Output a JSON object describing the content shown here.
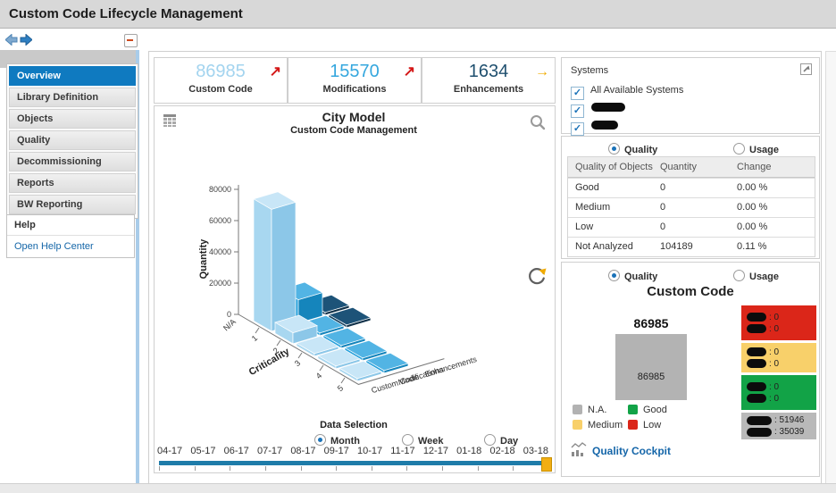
{
  "app": {
    "title": "Custom Code Lifecycle Management"
  },
  "icons": {
    "check": "✓",
    "trend_up": "↗",
    "trend_flat": "→",
    "names": [
      "nav-back",
      "nav-forward",
      "collapse-minus",
      "table-view-icon",
      "magnifier-icon",
      "refresh-icon",
      "expand-icon",
      "mini-chart-icon"
    ]
  },
  "sidebar": {
    "items": [
      {
        "label": "Overview",
        "selected": true
      },
      {
        "label": "Library Definition",
        "selected": false
      },
      {
        "label": "Objects",
        "selected": false
      },
      {
        "label": "Quality",
        "selected": false
      },
      {
        "label": "Decommissioning",
        "selected": false
      },
      {
        "label": "Reports",
        "selected": false
      },
      {
        "label": "BW Reporting",
        "selected": false
      }
    ],
    "help_header": "Help",
    "help_link": "Open Help Center"
  },
  "kpis": [
    {
      "value": "86985",
      "label": "Custom Code",
      "value_color": "#a3d4ef",
      "trend": "up",
      "trend_color": "#d41717"
    },
    {
      "value": "15570",
      "label": "Modifications",
      "value_color": "#35a7de",
      "trend": "up",
      "trend_color": "#d41717"
    },
    {
      "value": "1634",
      "label": "Enhancements",
      "value_color": "#20506f",
      "trend": "flat",
      "trend_color": "#f0ab00"
    }
  ],
  "chart_data": {
    "type": "bar",
    "variant": "3d-city-model",
    "title": "City Model",
    "subtitle": "Custom Code Management",
    "xlabel": "Criticality",
    "ylabel": "Quantity",
    "ylim": [
      0,
      80000
    ],
    "yticks": [
      0,
      20000,
      40000,
      60000,
      80000
    ],
    "categories": [
      "N/A",
      "1",
      "2",
      "3",
      "4",
      "5"
    ],
    "series": [
      {
        "name": "Custom Code",
        "colors": {
          "top": "#c8e6f7",
          "left": "#a8d7f0",
          "right": "#8cc7e8"
        },
        "values": [
          null,
          78000,
          7000,
          400,
          300,
          250
        ]
      },
      {
        "name": "Modifications",
        "colors": {
          "top": "#52b4e4",
          "left": "#2aa2dc",
          "right": "#1585bc"
        },
        "values": [
          null,
          15000,
          500,
          400,
          300,
          250
        ]
      },
      {
        "name": "Enhancements",
        "colors": {
          "top": "#1d5378",
          "left": "#153f5d",
          "right": "#0e3048"
        },
        "values": [
          null,
          1500,
          250,
          null,
          null,
          null
        ]
      }
    ],
    "legend_position": "axis-labels-on-depth-axis",
    "grid": false
  },
  "data_selection": {
    "label": "Data Selection",
    "options": [
      {
        "label": "Month",
        "selected": true
      },
      {
        "label": "Week",
        "selected": false
      },
      {
        "label": "Day",
        "selected": false
      }
    ]
  },
  "timeline": {
    "labels": [
      "04-17",
      "05-17",
      "06-17",
      "07-17",
      "08-17",
      "09-17",
      "10-17",
      "11-17",
      "12-17",
      "01-18",
      "02-18",
      "03-18"
    ]
  },
  "systems": {
    "title": "Systems",
    "items": [
      {
        "label": "All Available Systems",
        "checked": true,
        "redacted": false
      },
      {
        "label": "",
        "checked": true,
        "redacted": true
      },
      {
        "label": "",
        "checked": true,
        "redacted": true
      }
    ]
  },
  "quality_panel": {
    "radios": [
      {
        "label": "Quality",
        "selected": true
      },
      {
        "label": "Usage",
        "selected": false
      }
    ],
    "table": {
      "headers": [
        "Quality of Objects",
        "Quantity",
        "Change"
      ],
      "rows": [
        [
          "Good",
          "0",
          "0.00 %"
        ],
        [
          "Medium",
          "0",
          "0.00 %"
        ],
        [
          "Low",
          "0",
          "0.00 %"
        ],
        [
          "Not Analyzed",
          "104189",
          "0.11 %"
        ]
      ]
    }
  },
  "custom_code_panel": {
    "radios": [
      {
        "label": "Quality",
        "selected": true
      },
      {
        "label": "Usage",
        "selected": false
      }
    ],
    "title": "Custom Code",
    "total": "86985",
    "block_value": "86985",
    "value_separator": ": ",
    "stat_blocks": [
      {
        "color": "#db2619",
        "rows": [
          {
            "redacted": true,
            "value": "0"
          },
          {
            "redacted": true,
            "value": "0"
          }
        ]
      },
      {
        "color": "#f8d06a",
        "rows": [
          {
            "redacted": true,
            "value": "0"
          },
          {
            "redacted": true,
            "value": "0"
          }
        ]
      },
      {
        "color": "#12a347",
        "rows": [
          {
            "redacted": true,
            "value": "0"
          },
          {
            "redacted": true,
            "value": "0"
          }
        ]
      },
      {
        "color": "#b9b9b9",
        "rows": [
          {
            "redacted": true,
            "value": "51946"
          },
          {
            "redacted": true,
            "value": "35039"
          }
        ]
      }
    ],
    "legend": [
      {
        "label": "N.A.",
        "color": "#b2b2b2"
      },
      {
        "label": "Good",
        "color": "#12a347"
      },
      {
        "label": "Medium",
        "color": "#f8d06a"
      },
      {
        "label": "Low",
        "color": "#db2619"
      }
    ],
    "link": "Quality Cockpit"
  }
}
